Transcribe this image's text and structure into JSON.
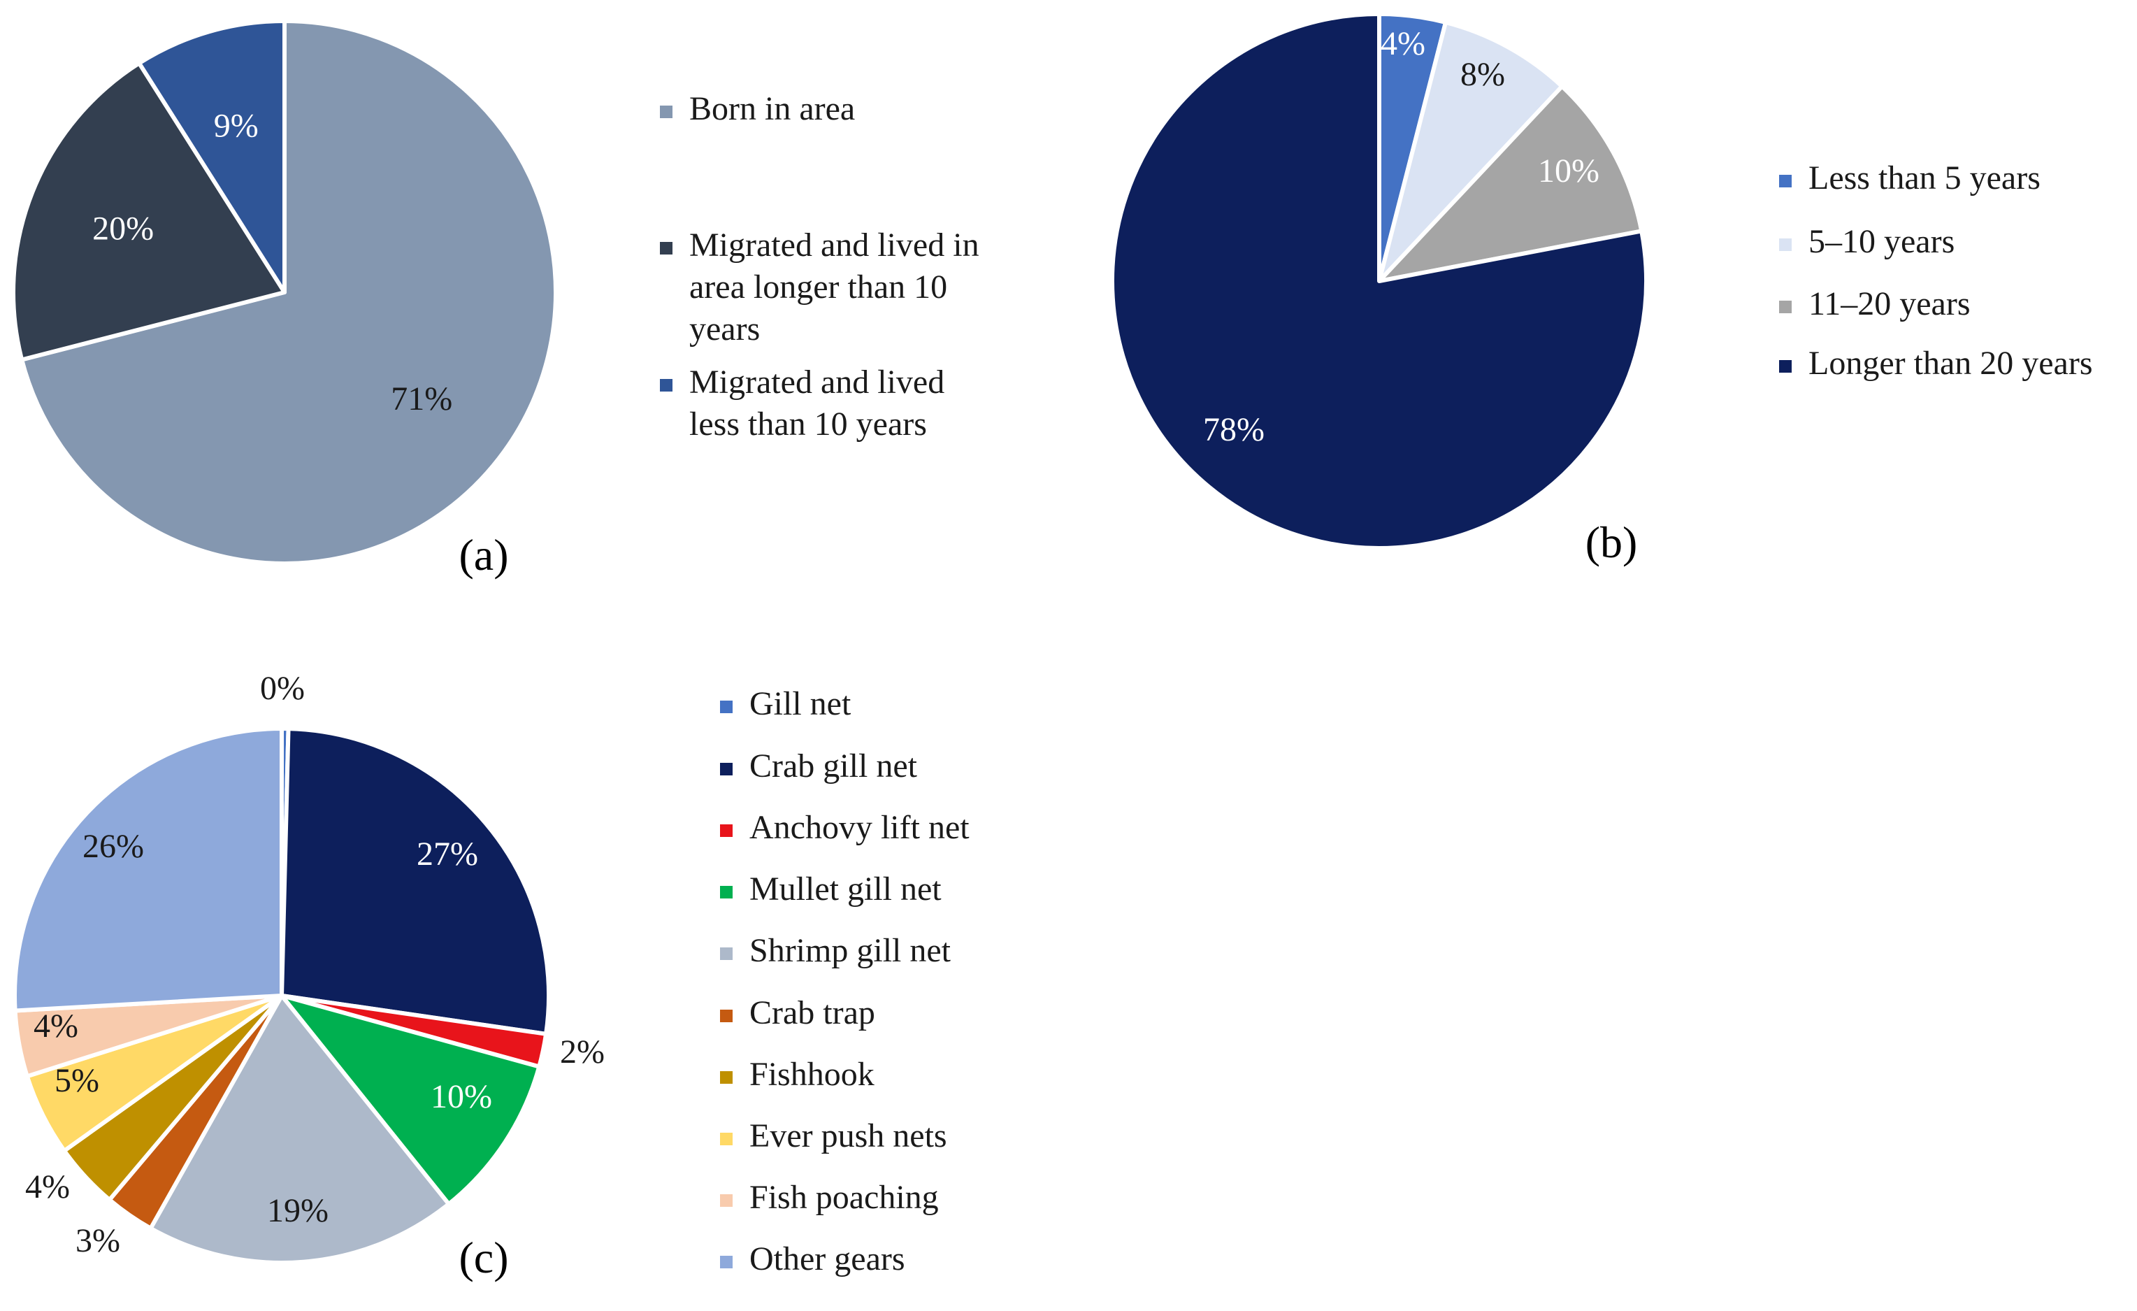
{
  "chart_data": [
    {
      "type": "pie",
      "panel_label": "(a)",
      "start_angle_deg": 0,
      "legend_position": "right",
      "slices": [
        {
          "label": "Born in area",
          "value": 71,
          "display": "71%",
          "color": "#8497B0",
          "label_color": "#1a1a1a"
        },
        {
          "label": "Migrated and lived in area longer than 10 years",
          "value": 20,
          "display": "20%",
          "color": "#333F50",
          "label_color": "#ffffff"
        },
        {
          "label": "Migrated and lived less than 10 years",
          "value": 9,
          "display": "9%",
          "color": "#2F5597",
          "label_color": "#ffffff"
        }
      ],
      "legend_lines": [
        [
          "Born in area"
        ],
        [
          "Migrated and lived in",
          "area longer than 10",
          "years"
        ],
        [
          "Migrated and lived",
          "less than 10 years"
        ]
      ]
    },
    {
      "type": "pie",
      "panel_label": "(b)",
      "start_angle_deg": 0,
      "legend_position": "right",
      "slices": [
        {
          "label": "Less than 5 years",
          "value": 4,
          "display": "4%",
          "color": "#4472C4",
          "label_color": "#ffffff"
        },
        {
          "label": "5–10 years",
          "value": 8,
          "display": "8%",
          "color": "#DAE3F3",
          "label_color": "#1a1a1a"
        },
        {
          "label": "11–20 years",
          "value": 10,
          "display": "10%",
          "color": "#A5A5A5",
          "label_color": "#ffffff"
        },
        {
          "label": "Longer than 20 years",
          "value": 78,
          "display": "78%",
          "color": "#0D1F5C",
          "label_color": "#ffffff"
        }
      ],
      "legend_lines": [
        [
          "Less than 5 years"
        ],
        [
          "5–10 years"
        ],
        [
          "11–20 years"
        ],
        [
          "Longer than 20 years"
        ]
      ]
    },
    {
      "type": "pie",
      "panel_label": "(c)",
      "start_angle_deg": 0,
      "legend_position": "right",
      "slices": [
        {
          "label": "Gill net",
          "value": 0.4,
          "display": "0%",
          "color": "#4472C4",
          "label_color": "#1a1a1a"
        },
        {
          "label": "Crab gill net",
          "value": 27,
          "display": "27%",
          "color": "#0D1F5C",
          "label_color": "#ffffff"
        },
        {
          "label": "Anchovy lift net",
          "value": 2,
          "display": "2%",
          "color": "#E8141B",
          "label_color": "#1a1a1a"
        },
        {
          "label": "Mullet gill net",
          "value": 10,
          "display": "10%",
          "color": "#00B050",
          "label_color": "#ffffff"
        },
        {
          "label": "Shrimp gill net",
          "value": 19,
          "display": "19%",
          "color": "#ADB9CA",
          "label_color": "#1a1a1a"
        },
        {
          "label": "Crab trap",
          "value": 3,
          "display": "3%",
          "color": "#C55A11",
          "label_color": "#1a1a1a"
        },
        {
          "label": "Fishhook",
          "value": 4,
          "display": "4%",
          "color": "#BF9000",
          "label_color": "#1a1a1a"
        },
        {
          "label": "Ever push nets",
          "value": 5,
          "display": "5%",
          "color": "#FFD966",
          "label_color": "#1a1a1a"
        },
        {
          "label": "Fish poaching",
          "value": 4,
          "display": "4%",
          "color": "#F8CBAD",
          "label_color": "#1a1a1a"
        },
        {
          "label": "Other gears",
          "value": 26,
          "display": "26%",
          "color": "#8EA9DB",
          "label_color": "#1a1a1a"
        }
      ],
      "legend_lines": [
        [
          "Gill net"
        ],
        [
          "Crab gill net"
        ],
        [
          "Anchovy lift net"
        ],
        [
          "Mullet gill net"
        ],
        [
          "Shrimp gill net"
        ],
        [
          "Crab trap"
        ],
        [
          "Fishhook"
        ],
        [
          "Ever push nets"
        ],
        [
          "Fish poaching"
        ],
        [
          "Other gears"
        ]
      ]
    }
  ]
}
